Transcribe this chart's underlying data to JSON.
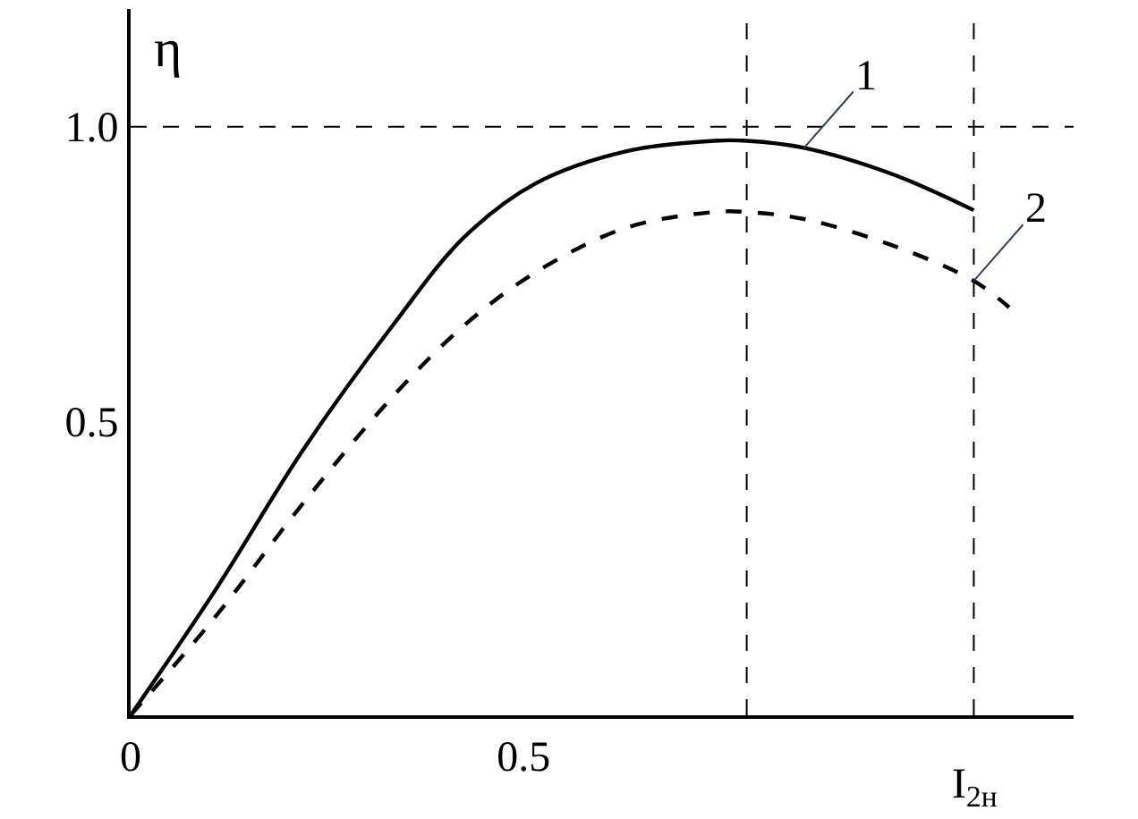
{
  "chart_data": {
    "type": "line",
    "ylabel": "η",
    "xlim": [
      0,
      1.2
    ],
    "ylim": [
      0,
      1.2
    ],
    "xticks": [
      0,
      0.5
    ],
    "xlabel": "I$_{2н}$",
    "yticks": [
      0.5,
      {
        "value": 1.0,
        "label": "1.0"
      }
    ],
    "series": [
      {
        "name": "1",
        "color": "#000000",
        "line_style": "solid",
        "x": [
          0,
          0.107,
          0.22,
          0.334,
          0.425,
          0.516,
          0.63,
          0.743,
          0.784,
          0.857,
          0.97,
          1.073
        ],
        "values": [
          0,
          0.211,
          0.452,
          0.663,
          0.813,
          0.904,
          0.958,
          0.976,
          0.976,
          0.964,
          0.919,
          0.858
        ]
      },
      {
        "name": "2",
        "color": "#000000",
        "line_style": "dashed",
        "x": [
          0,
          0.107,
          0.22,
          0.334,
          0.425,
          0.516,
          0.63,
          0.743,
          0.784,
          0.857,
          0.97,
          1.073,
          1.118
        ],
        "values": [
          0,
          0.166,
          0.361,
          0.542,
          0.663,
          0.753,
          0.828,
          0.855,
          0.855,
          0.843,
          0.798,
          0.738,
          0.693
        ]
      }
    ],
    "ref_lines": [
      {
        "axis": "y",
        "value": 1.0,
        "line_style": "dashed"
      },
      {
        "axis": "x",
        "value": 0.784,
        "line_style": "dashed"
      },
      {
        "axis": "x",
        "value": 1.073,
        "line_style": "dashed"
      }
    ],
    "legend": false,
    "marker": "none"
  }
}
